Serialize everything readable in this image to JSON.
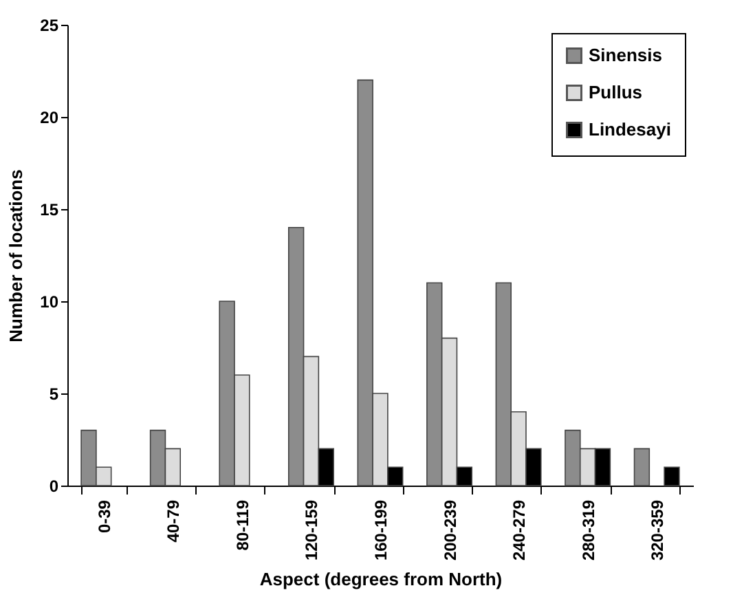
{
  "chart_data": {
    "type": "bar",
    "xlabel": "Aspect (degrees from North)",
    "ylabel": "Number of locations",
    "categories": [
      "0-39",
      "40-79",
      "80-119",
      "120-159",
      "160-199",
      "200-239",
      "240-279",
      "280-319",
      "320-359"
    ],
    "series": [
      {
        "name": "Sinensis",
        "color": "#8c8c8c",
        "values": [
          3,
          3,
          10,
          14,
          22,
          11,
          11,
          3,
          2
        ]
      },
      {
        "name": "Pullus",
        "color": "#dcdcdc",
        "values": [
          1,
          2,
          6,
          7,
          5,
          8,
          4,
          2,
          null
        ]
      },
      {
        "name": "Lindesayi",
        "color": "#000000",
        "values": [
          null,
          null,
          null,
          2,
          1,
          1,
          2,
          2,
          1
        ]
      }
    ],
    "ylim": [
      0,
      25
    ],
    "yticks": [
      0,
      5,
      10,
      15,
      20,
      25
    ],
    "grid": false,
    "legend": "top right"
  }
}
